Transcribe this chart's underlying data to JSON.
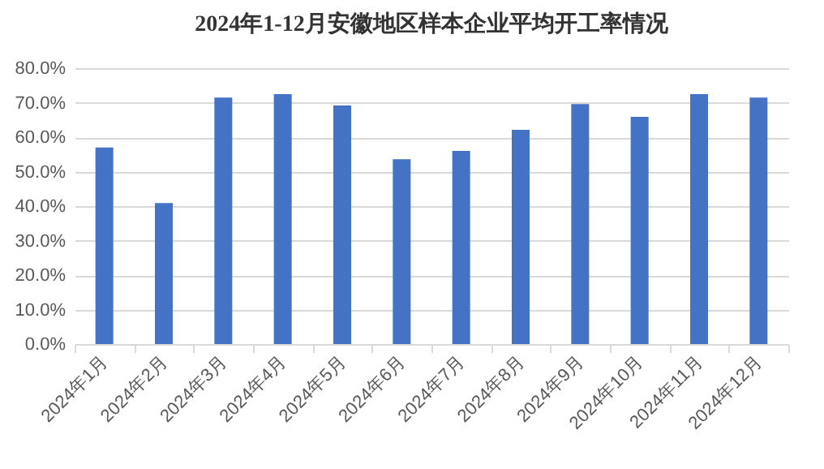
{
  "chart_data": {
    "type": "bar",
    "title": "2024年1-12月安徽地区样本企业平均开工率情况",
    "categories": [
      "2024年1月",
      "2024年2月",
      "2024年3月",
      "2024年4月",
      "2024年5月",
      "2024年6月",
      "2024年7月",
      "2024年8月",
      "2024年9月",
      "2024年10月",
      "2024年11月",
      "2024年12月"
    ],
    "values": [
      57.0,
      40.9,
      71.5,
      72.5,
      69.2,
      53.6,
      56.0,
      62.1,
      69.6,
      65.9,
      72.5,
      71.5
    ],
    "color": "#4472c4",
    "ylim": [
      0,
      80
    ],
    "yticks": [
      {
        "value": 0,
        "label": "0.0%"
      },
      {
        "value": 10,
        "label": "10.0%"
      },
      {
        "value": 20,
        "label": "20.0%"
      },
      {
        "value": 30,
        "label": "30.0%"
      },
      {
        "value": 40,
        "label": "40.0%"
      },
      {
        "value": 50,
        "label": "50.0%"
      },
      {
        "value": 60,
        "label": "60.0%"
      },
      {
        "value": 70,
        "label": "70.0%"
      },
      {
        "value": 80,
        "label": "80.0%"
      }
    ],
    "grid": "y"
  }
}
